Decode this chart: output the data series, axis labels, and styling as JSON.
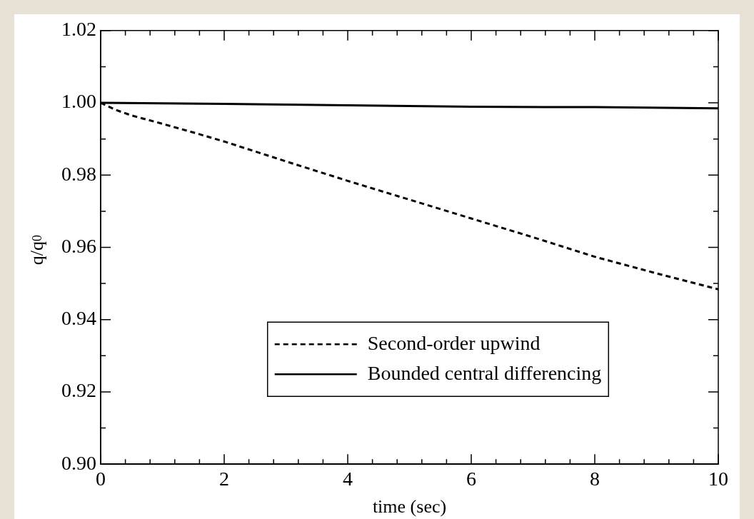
{
  "chart_data": {
    "type": "line",
    "xlabel": "time (sec)",
    "ylabel": "q/q$_{0}$",
    "xlim": [
      0,
      10
    ],
    "ylim": [
      0.9,
      1.02
    ],
    "xticks": [
      0,
      {
        "value": 0.4,
        "label": null
      },
      {
        "value": 0.8,
        "label": null
      },
      {
        "value": 1.2,
        "label": null
      },
      {
        "value": 1.6,
        "label": null
      },
      2,
      {
        "value": 2.4,
        "label": null
      },
      {
        "value": 2.8,
        "label": null
      },
      {
        "value": 3.2,
        "label": null
      },
      {
        "value": 3.6,
        "label": null
      },
      4,
      {
        "value": 4.4,
        "label": null
      },
      {
        "value": 4.8,
        "label": null
      },
      {
        "value": 5.2,
        "label": null
      },
      {
        "value": 5.6,
        "label": null
      },
      6,
      {
        "value": 6.4,
        "label": null
      },
      {
        "value": 6.8,
        "label": null
      },
      {
        "value": 7.2,
        "label": null
      },
      {
        "value": 7.6,
        "label": null
      },
      8,
      {
        "value": 8.4,
        "label": null
      },
      {
        "value": 8.8,
        "label": null
      },
      {
        "value": 9.2,
        "label": null
      },
      {
        "value": 9.6,
        "label": null
      },
      10
    ],
    "yticks": [
      {
        "value": 0.9,
        "label": "0.90"
      },
      {
        "value": 0.91,
        "label": null
      },
      {
        "value": 0.92,
        "label": "0.92"
      },
      {
        "value": 0.93,
        "label": null
      },
      {
        "value": 0.94,
        "label": "0.94"
      },
      {
        "value": 0.95,
        "label": null
      },
      {
        "value": 0.96,
        "label": "0.96"
      },
      {
        "value": 0.97,
        "label": null
      },
      {
        "value": 0.98,
        "label": "0.98"
      },
      {
        "value": 0.99,
        "label": null
      },
      {
        "value": 1.0,
        "label": "1.00"
      },
      {
        "value": 1.01,
        "label": null
      },
      {
        "value": 1.02,
        "label": "1.02"
      }
    ],
    "grid": false,
    "legend": "bottom",
    "marker": "none",
    "series": [
      {
        "name": "Second-order upwind",
        "color": "#000000",
        "line_style": "dashed",
        "x": [
          0,
          0.25,
          0.5,
          1,
          1.5,
          2,
          3,
          4,
          5,
          6,
          7,
          8,
          9,
          10
        ],
        "values": [
          1.0,
          0.998,
          0.9965,
          0.9942,
          0.9918,
          0.9893,
          0.9838,
          0.9784,
          0.9732,
          0.968,
          0.9628,
          0.9574,
          0.9528,
          0.9484
        ]
      },
      {
        "name": "Bounded central differencing",
        "color": "#000000",
        "line_style": "solid",
        "x": [
          0,
          2,
          4,
          6,
          8,
          10
        ],
        "values": [
          1.0,
          0.9997,
          0.9993,
          0.9989,
          0.9988,
          0.9985
        ]
      }
    ]
  }
}
